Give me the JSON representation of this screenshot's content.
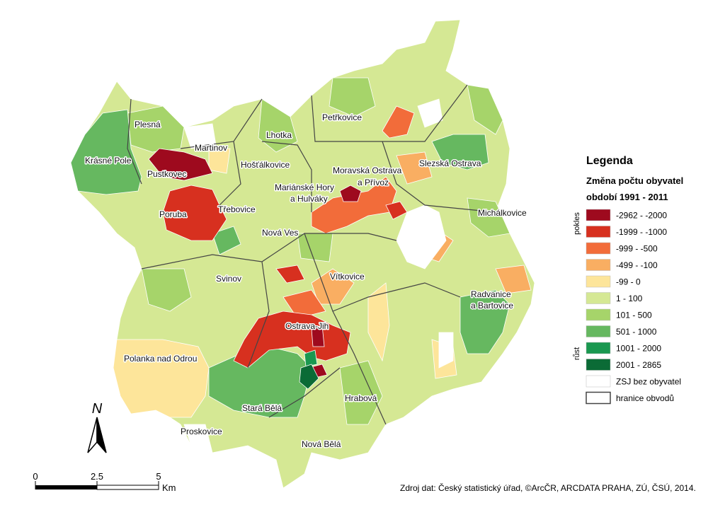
{
  "map": {
    "districts": [
      "Plesná",
      "Krásné Pole",
      "Pustkovec",
      "Martinov",
      "Lhotka",
      "Petřkovice",
      "Hošťálkovice",
      "Moravská Ostrava",
      "a Přívoz",
      "Slezská Ostrava",
      "Mariánské Hory",
      "a Hulváky",
      "Poruba",
      "Třebovice",
      "Michálkovice",
      "Nová Ves",
      "Vítkovice",
      "Svinov",
      "Radvanice",
      "a Bartovice",
      "Ostrava-Jih",
      "Polanka nad Odrou",
      "Hrabová",
      "Stará Bělá",
      "Proskovice",
      "Nová Bělá"
    ],
    "legend": {
      "title": "Legenda",
      "subtitle": "Změna počtu obyvatel",
      "period": "období 1991 - 2011",
      "group_labels": [
        "pokles",
        "růst"
      ],
      "items": [
        {
          "label": "-2962 - -2000",
          "color": "#9e0a1e"
        },
        {
          "label": "-1999 - -1000",
          "color": "#d7301f"
        },
        {
          "label": "-999 - -500",
          "color": "#f26c3a"
        },
        {
          "label": "-499 - -100",
          "color": "#f9ae62"
        },
        {
          "label": "-99 - 0",
          "color": "#fde59a"
        },
        {
          "label": "1 - 100",
          "color": "#d5e894"
        },
        {
          "label": "101 - 500",
          "color": "#a6d46a"
        },
        {
          "label": "501 - 1000",
          "color": "#66b860"
        },
        {
          "label": "1001 - 2000",
          "color": "#1a9850"
        },
        {
          "label": "2001 - 2865",
          "color": "#0b6b36"
        },
        {
          "label": "ZSJ bez obyvatel",
          "color": "#ffffff"
        },
        {
          "label": "hranice obvodů",
          "color": "#ffffff"
        }
      ]
    },
    "scale": {
      "labels": [
        "0",
        "2.5",
        "5"
      ],
      "unit": "Km"
    },
    "north": "N",
    "source": "Zdroj dat: Český statistický úřad, ©ArcČR, ARCDATA PRAHA, ZÚ, ČSÚ, 2014."
  }
}
